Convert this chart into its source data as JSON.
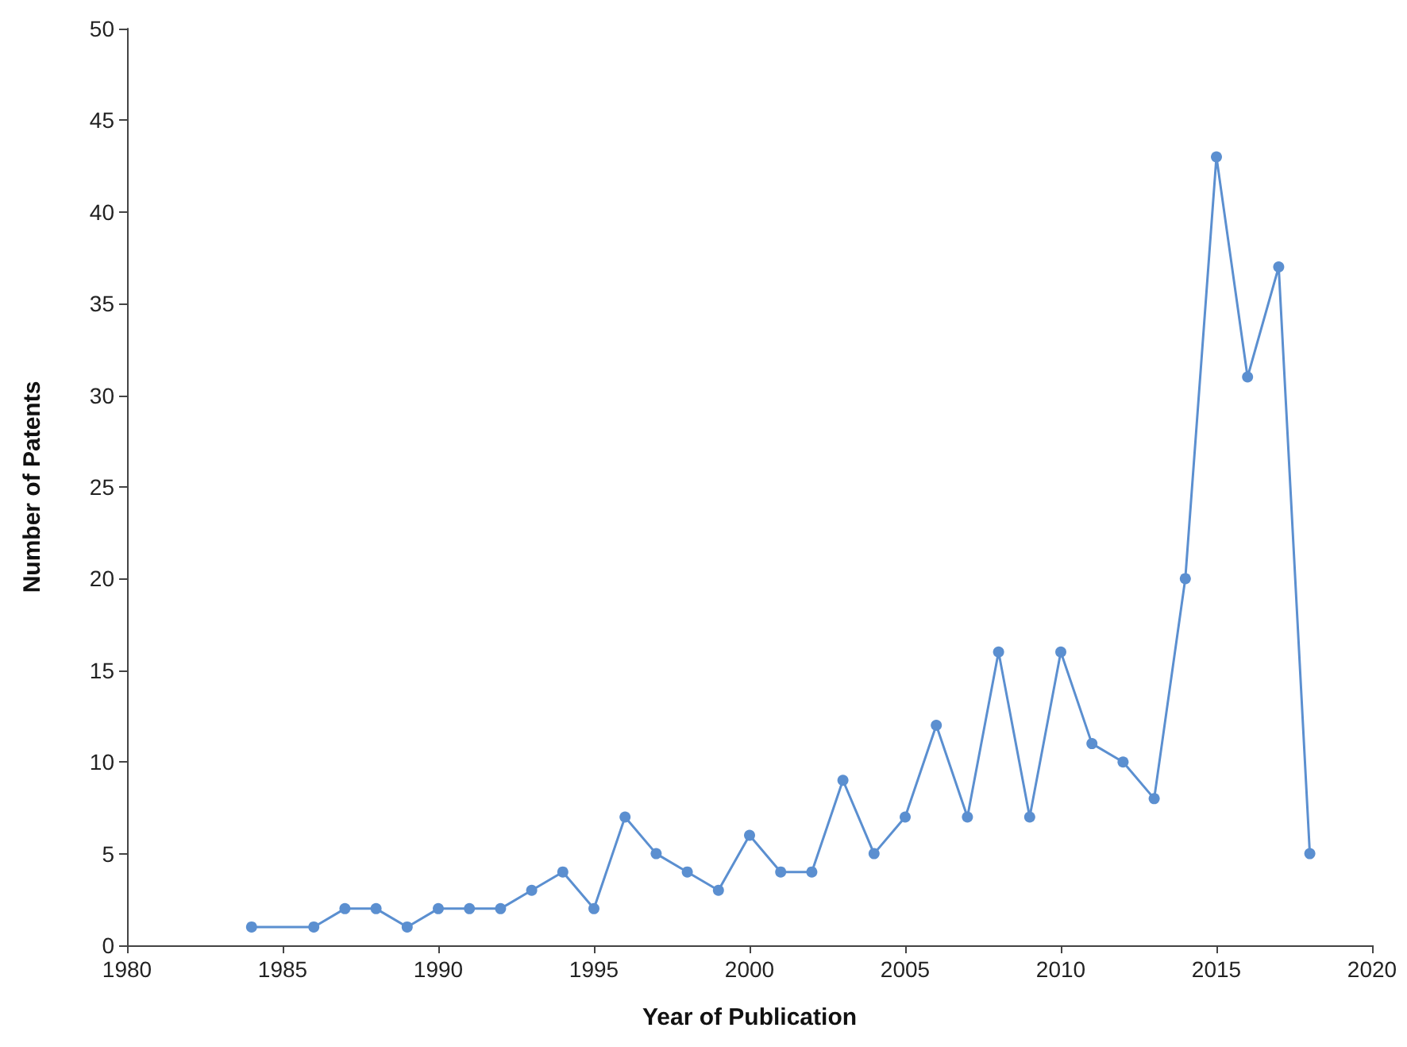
{
  "chart_data": {
    "type": "line",
    "xlabel": "Year of Publication",
    "ylabel": "Number of Patents",
    "x": [
      1984,
      1986,
      1987,
      1988,
      1989,
      1990,
      1991,
      1992,
      1993,
      1994,
      1995,
      1996,
      1997,
      1998,
      1999,
      2000,
      2001,
      2002,
      2003,
      2004,
      2005,
      2006,
      2007,
      2008,
      2009,
      2010,
      2011,
      2012,
      2013,
      2014,
      2015,
      2016,
      2017,
      2018
    ],
    "series": [
      {
        "color": "#5b8fd0",
        "values": [
          1,
          1,
          2,
          2,
          1,
          2,
          2,
          2,
          3,
          4,
          2,
          7,
          5,
          4,
          3,
          6,
          4,
          4,
          9,
          5,
          7,
          12,
          7,
          16,
          7,
          16,
          11,
          10,
          8,
          20,
          43,
          31,
          37,
          5
        ]
      }
    ],
    "xlim": [
      1980,
      2020
    ],
    "xticks": [
      1980,
      1985,
      1990,
      1995,
      2000,
      2005,
      2010,
      2015,
      2020
    ],
    "ylim": [
      0,
      50
    ],
    "yticks": [
      0,
      5,
      10,
      15,
      20,
      25,
      30,
      35,
      40,
      45,
      50
    ],
    "grid": false,
    "marker": "circle",
    "line_style": "solid"
  }
}
